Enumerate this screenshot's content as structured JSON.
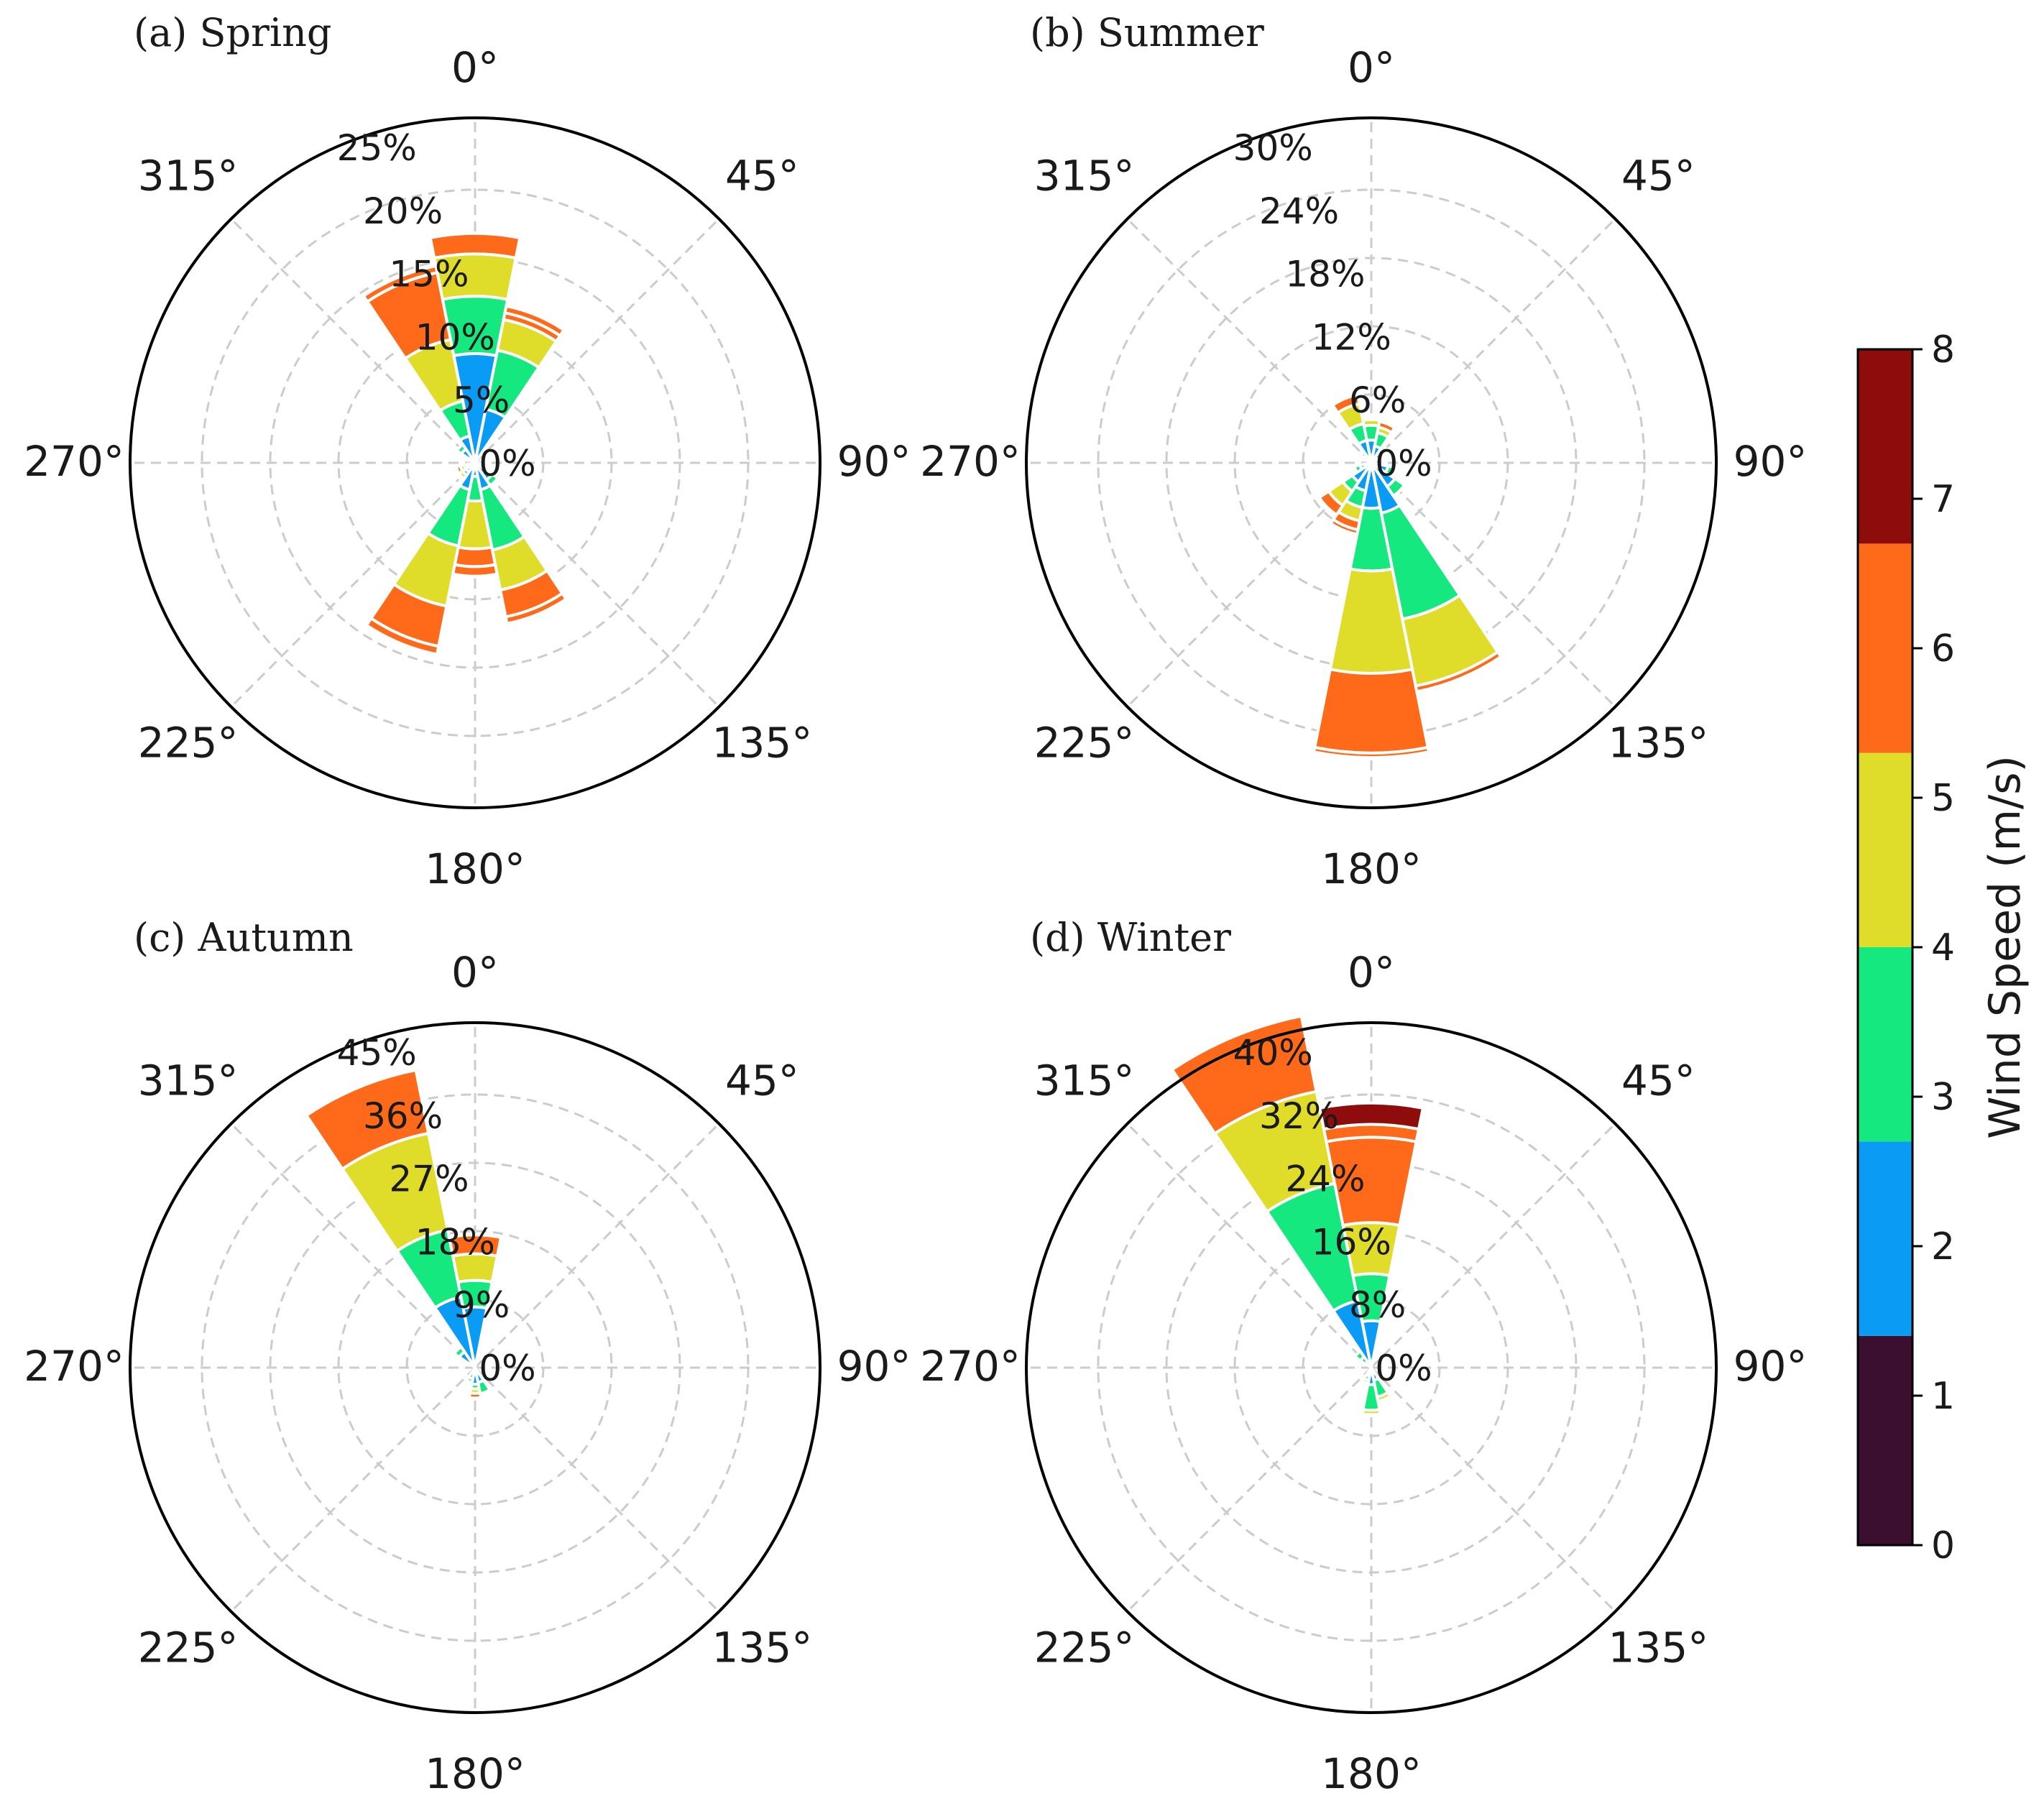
{
  "chart_data": [
    {
      "type": "windrose",
      "title": "(a) Spring",
      "angle_labels": [
        "0°",
        "45°",
        "90°",
        "135°",
        "180°",
        "225°",
        "270°",
        "315°"
      ],
      "radial_ticks": [
        "0%",
        "5%",
        "10%",
        "15%",
        "20%",
        "25%"
      ],
      "rmax": 25,
      "sector_width_deg": 22.5,
      "sectors": [
        {
          "dir": 0,
          "values": [
            0,
            0,
            8.0,
            4.2,
            3.1,
            1.5,
            0,
            0
          ]
        },
        {
          "dir": 22.5,
          "values": [
            0,
            0,
            4.0,
            4.4,
            2.3,
            0.5,
            0.5,
            0
          ]
        },
        {
          "dir": 337.5,
          "values": [
            0,
            0,
            2.0,
            2.6,
            4.6,
            5.0,
            0.5,
            0
          ]
        },
        {
          "dir": 315,
          "values": [
            0,
            0,
            1.2,
            0.4,
            0,
            0,
            0,
            0
          ]
        },
        {
          "dir": 202.5,
          "values": [
            0,
            0,
            2.0,
            4.2,
            4.5,
            3.0,
            0.6,
            0
          ]
        },
        {
          "dir": 180,
          "values": [
            0,
            0,
            1.0,
            1.8,
            3.5,
            1.3,
            0.7,
            0
          ]
        },
        {
          "dir": 157.5,
          "values": [
            0,
            0,
            2.0,
            4.5,
            3.0,
            2.0,
            0.5,
            0
          ]
        },
        {
          "dir": 135,
          "values": [
            0,
            0,
            1.5,
            0.5,
            0,
            0,
            0,
            0
          ]
        },
        {
          "dir": 225,
          "values": [
            0,
            0,
            0.8,
            0.3,
            0.3,
            0.2,
            0,
            0
          ]
        },
        {
          "dir": 247.5,
          "values": [
            0,
            0,
            0.6,
            0.2,
            0.3,
            0.3,
            0,
            0
          ]
        },
        {
          "dir": 112.5,
          "values": [
            0,
            0,
            0.8,
            0,
            0,
            0,
            0,
            0
          ]
        }
      ]
    },
    {
      "type": "windrose",
      "title": "(b) Summer",
      "angle_labels": [
        "0°",
        "45°",
        "90°",
        "135°",
        "180°",
        "225°",
        "270°",
        "315°"
      ],
      "radial_ticks": [
        "0%",
        "6%",
        "12%",
        "18%",
        "24%",
        "30%"
      ],
      "rmax": 30,
      "sector_width_deg": 22.5,
      "sectors": [
        {
          "dir": 0,
          "values": [
            0,
            0,
            2.0,
            1.3,
            0.5,
            0.2,
            0,
            0
          ]
        },
        {
          "dir": 337.5,
          "values": [
            0,
            0,
            2.0,
            1.5,
            1.8,
            0.8,
            0,
            0
          ]
        },
        {
          "dir": 22.5,
          "values": [
            0,
            0,
            1.5,
            1.2,
            0.5,
            0.5,
            0,
            0
          ]
        },
        {
          "dir": 45,
          "values": [
            0,
            0,
            1.0,
            0.5,
            0.3,
            0,
            0,
            0
          ]
        },
        {
          "dir": 315,
          "values": [
            0,
            0,
            0.8,
            0.3,
            0,
            0,
            0,
            0
          ]
        },
        {
          "dir": 180,
          "values": [
            0,
            0,
            4.0,
            5.5,
            9.0,
            7.0,
            0.4,
            0
          ]
        },
        {
          "dir": 157.5,
          "values": [
            0,
            0,
            4.5,
            9.5,
            6.0,
            0.5,
            0,
            0
          ]
        },
        {
          "dir": 202.5,
          "values": [
            0,
            0,
            2.5,
            1.5,
            1.2,
            0.8,
            0.4,
            0
          ]
        },
        {
          "dir": 225,
          "values": [
            0,
            0,
            2.0,
            1.0,
            1.5,
            1.0,
            0,
            0
          ]
        },
        {
          "dir": 135,
          "values": [
            0,
            0,
            2.5,
            1.0,
            0,
            0,
            0,
            0
          ]
        },
        {
          "dir": 112.5,
          "values": [
            0,
            0,
            1.5,
            0.5,
            0,
            0,
            0,
            0
          ]
        },
        {
          "dir": 247.5,
          "values": [
            0,
            0,
            1.0,
            0.5,
            0,
            0,
            0,
            0
          ]
        }
      ]
    },
    {
      "type": "windrose",
      "title": "(c) Autumn",
      "angle_labels": [
        "0°",
        "45°",
        "90°",
        "135°",
        "180°",
        "225°",
        "270°",
        "315°"
      ],
      "radial_ticks": [
        "0%",
        "9%",
        "18%",
        "27%",
        "36%",
        "45%"
      ],
      "rmax": 45,
      "sector_width_deg": 22.5,
      "sectors": [
        {
          "dir": 337.5,
          "values": [
            0,
            0,
            9.5,
            9.0,
            13.0,
            8.5,
            0,
            0
          ]
        },
        {
          "dir": 0,
          "values": [
            0,
            0,
            8.0,
            3.5,
            3.5,
            2.5,
            0,
            0
          ]
        },
        {
          "dir": 315,
          "values": [
            0,
            0,
            2.5,
            0.8,
            0,
            0,
            0,
            0
          ]
        },
        {
          "dir": 180,
          "values": [
            0,
            0,
            2.2,
            0.6,
            0.6,
            0.6,
            0,
            0
          ]
        },
        {
          "dir": 157.5,
          "values": [
            0,
            0,
            2.0,
            1.5,
            0,
            0,
            0,
            0
          ]
        },
        {
          "dir": 202.5,
          "values": [
            0,
            0,
            1.5,
            0.5,
            0,
            0,
            0,
            0
          ]
        }
      ]
    },
    {
      "type": "windrose",
      "title": "(d) Winter",
      "angle_labels": [
        "0°",
        "45°",
        "90°",
        "135°",
        "180°",
        "225°",
        "270°",
        "315°"
      ],
      "radial_ticks": [
        "0%",
        "8%",
        "16%",
        "24%",
        "32%",
        "40%"
      ],
      "rmax": 40,
      "sector_width_deg": 22.5,
      "sectors": [
        {
          "dir": 337.5,
          "values": [
            0,
            0,
            8.0,
            14.0,
            11.0,
            9.0,
            0,
            0
          ]
        },
        {
          "dir": 0,
          "values": [
            0,
            0,
            5.5,
            5.5,
            6.0,
            10.0,
            1.5,
            2.5
          ]
        },
        {
          "dir": 315,
          "values": [
            0,
            0,
            1.5,
            0.8,
            0,
            0,
            0,
            0
          ]
        },
        {
          "dir": 180,
          "values": [
            0,
            0,
            2.0,
            3.0,
            0.5,
            0,
            0,
            0
          ]
        },
        {
          "dir": 157.5,
          "values": [
            0,
            0,
            1.5,
            2.0,
            0.5,
            0,
            0,
            0
          ]
        },
        {
          "dir": 202.5,
          "values": [
            0,
            0,
            1.0,
            0.5,
            0.4,
            0,
            0,
            0
          ]
        }
      ]
    }
  ],
  "colorbar": {
    "label": "Wind Speed (m/s)",
    "ticks": [
      "0",
      "1",
      "2",
      "3",
      "4",
      "5",
      "6",
      "7",
      "8"
    ],
    "range": [
      0,
      8
    ],
    "bins": [
      {
        "from": 0,
        "to": 1.4,
        "color": "#3b0f2f"
      },
      {
        "from": 1.4,
        "to": 2.7,
        "color": "#0a9cf5"
      },
      {
        "from": 2.7,
        "to": 4.0,
        "color": "#16e880"
      },
      {
        "from": 4.0,
        "to": 5.3,
        "color": "#dfdc2a"
      },
      {
        "from": 5.3,
        "to": 6.7,
        "color": "#ff6a1a"
      },
      {
        "from": 6.7,
        "to": 8.0,
        "color": "#8e0c0c"
      }
    ]
  },
  "colors": {
    "bins": [
      "#3b0f2f",
      "#3b0f2f",
      "#0a9cf5",
      "#16e880",
      "#dfdc2a",
      "#ff6a1a",
      "#ff6a1a",
      "#8e0c0c"
    ],
    "grid": "#cccccc",
    "frame": "#000000"
  }
}
